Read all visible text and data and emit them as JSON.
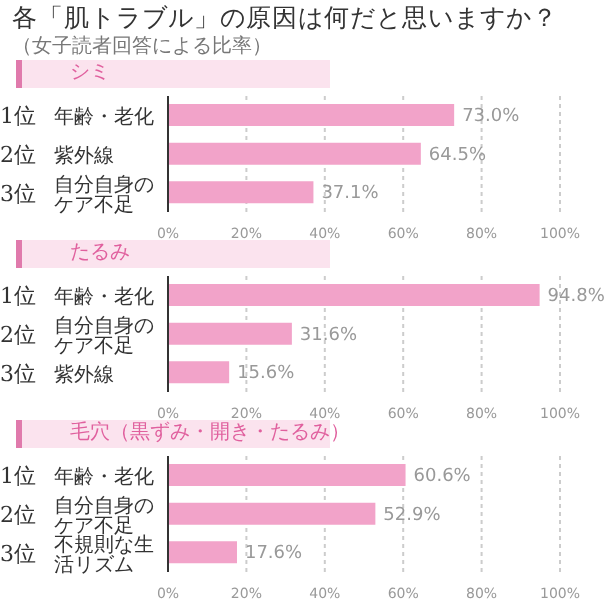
{
  "chart_data": [
    {
      "type": "bar",
      "orientation": "horizontal",
      "annotations": [
        "各「肌トラブル」の原因は何だと思いますか？",
        "（女子読者回答による比率）"
      ],
      "title": "シミ",
      "categories": [
        "1位 年齢・老化",
        "2位 紫外線",
        "3位 自分自身のケア不足"
      ],
      "values": [
        73.0,
        64.5,
        37.1
      ],
      "value_labels": [
        "73.0%",
        "64.5%",
        "37.1%"
      ],
      "color": "#f2a3c9",
      "xlim": [
        0,
        100
      ],
      "xticks": [
        {
          "value": 0,
          "label": "0%"
        },
        {
          "value": 20,
          "label": "20%"
        },
        {
          "value": 40,
          "label": "40%"
        },
        {
          "value": 60,
          "label": "60%"
        },
        {
          "value": 80,
          "label": "80%"
        },
        {
          "value": 100,
          "label": "100%"
        }
      ],
      "grid": "x"
    },
    {
      "type": "bar",
      "orientation": "horizontal",
      "title": "たるみ",
      "categories": [
        "1位 年齢・老化",
        "2位 自分自身のケア不足",
        "3位 紫外線"
      ],
      "values": [
        94.8,
        31.6,
        15.6
      ],
      "value_labels": [
        "94.8%",
        "31.6%",
        "15.6%"
      ],
      "color": "#f2a3c9",
      "xlim": [
        0,
        100
      ],
      "xticks": [
        {
          "value": 0,
          "label": "0%"
        },
        {
          "value": 20,
          "label": "20%"
        },
        {
          "value": 40,
          "label": "40%"
        },
        {
          "value": 60,
          "label": "60%"
        },
        {
          "value": 80,
          "label": "80%"
        },
        {
          "value": 100,
          "label": "100%"
        }
      ],
      "grid": "x"
    },
    {
      "type": "bar",
      "orientation": "horizontal",
      "title": "毛穴（黒ずみ・開き・たるみ）",
      "categories": [
        "1位 年齢・老化",
        "2位 自分自身のケア不足",
        "3位 不規則な生活リズム"
      ],
      "values": [
        60.6,
        52.9,
        17.6
      ],
      "value_labels": [
        "60.6%",
        "52.9%",
        "17.6%"
      ],
      "color": "#f2a3c9",
      "xlim": [
        0,
        100
      ],
      "xticks": [
        {
          "value": 0,
          "label": "0%"
        },
        {
          "value": 20,
          "label": "20%"
        },
        {
          "value": 40,
          "label": "40%"
        },
        {
          "value": 60,
          "label": "60%"
        },
        {
          "value": 80,
          "label": "80%"
        },
        {
          "value": 100,
          "label": "100%"
        }
      ],
      "grid": "x"
    }
  ]
}
